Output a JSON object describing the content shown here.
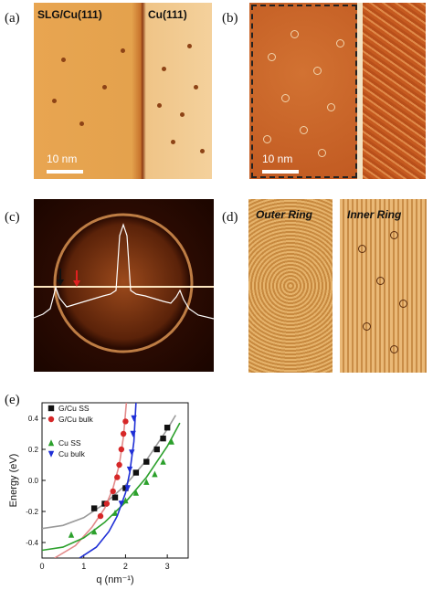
{
  "panels": {
    "a": {
      "label": "(a)",
      "left_text": "SLG/Cu(111)",
      "right_text": "Cu(111)",
      "scale": "10 nm"
    },
    "b": {
      "label": "(b)",
      "scale": "10 nm"
    },
    "c": {
      "label": "(c)"
    },
    "d": {
      "label": "(d)",
      "outer": "Outer Ring",
      "inner": "Inner Ring"
    },
    "e": {
      "label": "(e)"
    }
  },
  "chart_data": {
    "type": "scatter",
    "xlabel": "q (nm⁻¹)",
    "ylabel": "Energy (eV)",
    "xlim": [
      0,
      3.5
    ],
    "ylim": [
      -0.5,
      0.5
    ],
    "xticks": [
      0,
      1,
      2,
      3
    ],
    "yticks": [
      -0.4,
      -0.2,
      0.0,
      0.2,
      0.4
    ],
    "legend_position": "top-left",
    "series": [
      {
        "name": "G/Cu SS",
        "marker": "square",
        "color": "#111111",
        "points": [
          [
            1.25,
            -0.18
          ],
          [
            1.5,
            -0.15
          ],
          [
            1.75,
            -0.11
          ],
          [
            2.0,
            -0.05
          ],
          [
            2.25,
            0.05
          ],
          [
            2.5,
            0.12
          ],
          [
            2.75,
            0.2
          ],
          [
            2.9,
            0.27
          ],
          [
            3.0,
            0.34
          ]
        ],
        "fit_color": "#9a9a9a",
        "fit": [
          [
            0,
            -0.31
          ],
          [
            0.5,
            -0.29
          ],
          [
            1,
            -0.24
          ],
          [
            1.5,
            -0.15
          ],
          [
            2,
            -0.03
          ],
          [
            2.5,
            0.13
          ],
          [
            3,
            0.33
          ],
          [
            3.2,
            0.42
          ]
        ]
      },
      {
        "name": "G/Cu bulk",
        "marker": "circle",
        "color": "#d62728",
        "points": [
          [
            1.4,
            -0.23
          ],
          [
            1.55,
            -0.15
          ],
          [
            1.7,
            -0.07
          ],
          [
            1.8,
            0.02
          ],
          [
            1.85,
            0.1
          ],
          [
            1.9,
            0.2
          ],
          [
            1.95,
            0.3
          ],
          [
            2.0,
            0.38
          ]
        ],
        "fit_color": "#e28a8a",
        "fit": [
          [
            0.3,
            -0.5
          ],
          [
            0.8,
            -0.42
          ],
          [
            1.2,
            -0.3
          ],
          [
            1.5,
            -0.18
          ],
          [
            1.7,
            -0.05
          ],
          [
            1.85,
            0.1
          ],
          [
            1.95,
            0.28
          ],
          [
            2.02,
            0.5
          ]
        ]
      },
      {
        "name": "Cu SS",
        "marker": "triangle-up",
        "color": "#2ca02c",
        "points": [
          [
            0.7,
            -0.35
          ],
          [
            1.25,
            -0.33
          ],
          [
            1.75,
            -0.21
          ],
          [
            2.0,
            -0.13
          ],
          [
            2.25,
            -0.08
          ],
          [
            2.5,
            -0.01
          ],
          [
            2.7,
            0.04
          ],
          [
            2.9,
            0.12
          ],
          [
            3.1,
            0.25
          ]
        ],
        "fit_color": "#2ca02c",
        "fit": [
          [
            0,
            -0.45
          ],
          [
            0.5,
            -0.43
          ],
          [
            1,
            -0.37
          ],
          [
            1.5,
            -0.27
          ],
          [
            2,
            -0.14
          ],
          [
            2.5,
            0.02
          ],
          [
            3,
            0.22
          ],
          [
            3.3,
            0.37
          ]
        ]
      },
      {
        "name": "Cu bulk",
        "marker": "triangle-down",
        "color": "#1f2fd6",
        "points": [
          [
            1.9,
            -0.15
          ],
          [
            2.05,
            -0.05
          ],
          [
            2.1,
            0.07
          ],
          [
            2.15,
            0.18
          ],
          [
            2.18,
            0.3
          ],
          [
            2.2,
            0.4
          ]
        ],
        "fit_color": "#1f2fd6",
        "fit": [
          [
            0.9,
            -0.5
          ],
          [
            1.3,
            -0.43
          ],
          [
            1.6,
            -0.33
          ],
          [
            1.8,
            -0.23
          ],
          [
            2.0,
            -0.08
          ],
          [
            2.1,
            0.05
          ],
          [
            2.2,
            0.25
          ],
          [
            2.25,
            0.5
          ]
        ]
      }
    ]
  }
}
